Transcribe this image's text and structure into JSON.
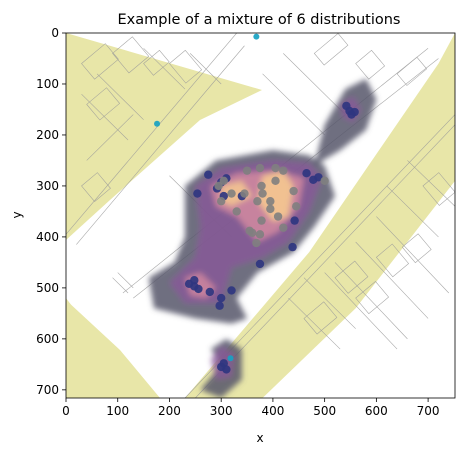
{
  "chart_data": {
    "type": "scatter",
    "title": "Example of a mixture of 6 distributions",
    "xlabel": "x",
    "ylabel": "y",
    "xlim": [
      0,
      752
    ],
    "ylim": [
      716,
      0
    ],
    "y_inverted": true,
    "x_ticks": [
      0,
      100,
      200,
      300,
      400,
      500,
      600,
      700
    ],
    "y_ticks": [
      0,
      100,
      200,
      300,
      400,
      500,
      600,
      700
    ],
    "grid": false,
    "background": "floor-plan image with yellow exterior region",
    "colors": {
      "exterior": "#e8e6a8",
      "floor": "#ffffff",
      "plan_lines": "#9a9a9a",
      "density_outer": "#55556a",
      "density_mid": "#8a5a9a",
      "density_inner": "#d48aa0",
      "density_core": "#f5c890",
      "point_dark": "#2f3680",
      "point_grey": "#7f7f7f",
      "point_cyan": "#17a2c2"
    },
    "series": [
      {
        "color": "#2f3680",
        "points": [
          [
            254,
            315
          ],
          [
            275,
            278
          ],
          [
            292,
            305
          ],
          [
            300,
            293
          ],
          [
            305,
            320
          ],
          [
            310,
            285
          ],
          [
            340,
            320
          ],
          [
            465,
            275
          ],
          [
            478,
            288
          ],
          [
            488,
            283
          ],
          [
            442,
            368
          ],
          [
            438,
            420
          ],
          [
            375,
            453
          ],
          [
            300,
            520
          ],
          [
            297,
            535
          ],
          [
            320,
            505
          ],
          [
            278,
            508
          ],
          [
            248,
            485
          ],
          [
            256,
            502
          ],
          [
            238,
            492
          ],
          [
            248,
            497
          ],
          [
            305,
            648
          ],
          [
            310,
            660
          ],
          [
            300,
            655
          ],
          [
            548,
            153
          ],
          [
            558,
            155
          ],
          [
            552,
            160
          ],
          [
            542,
            143
          ]
        ]
      },
      {
        "color": "#7f7f7f",
        "points": [
          [
            295,
            300
          ],
          [
            305,
            290
          ],
          [
            320,
            315
          ],
          [
            300,
            330
          ],
          [
            350,
            270
          ],
          [
            375,
            265
          ],
          [
            405,
            265
          ],
          [
            420,
            270
          ],
          [
            405,
            290
          ],
          [
            378,
            300
          ],
          [
            380,
            315
          ],
          [
            345,
            315
          ],
          [
            370,
            330
          ],
          [
            395,
            330
          ],
          [
            410,
            360
          ],
          [
            420,
            382
          ],
          [
            395,
            345
          ],
          [
            378,
            368
          ],
          [
            355,
            388
          ],
          [
            360,
            392
          ],
          [
            368,
            412
          ],
          [
            375,
            395
          ],
          [
            440,
            310
          ],
          [
            445,
            340
          ],
          [
            500,
            290
          ],
          [
            330,
            350
          ]
        ]
      },
      {
        "color": "#17a2c2",
        "points": [
          [
            368,
            7
          ],
          [
            176,
            178
          ],
          [
            318,
            638
          ]
        ]
      }
    ]
  }
}
